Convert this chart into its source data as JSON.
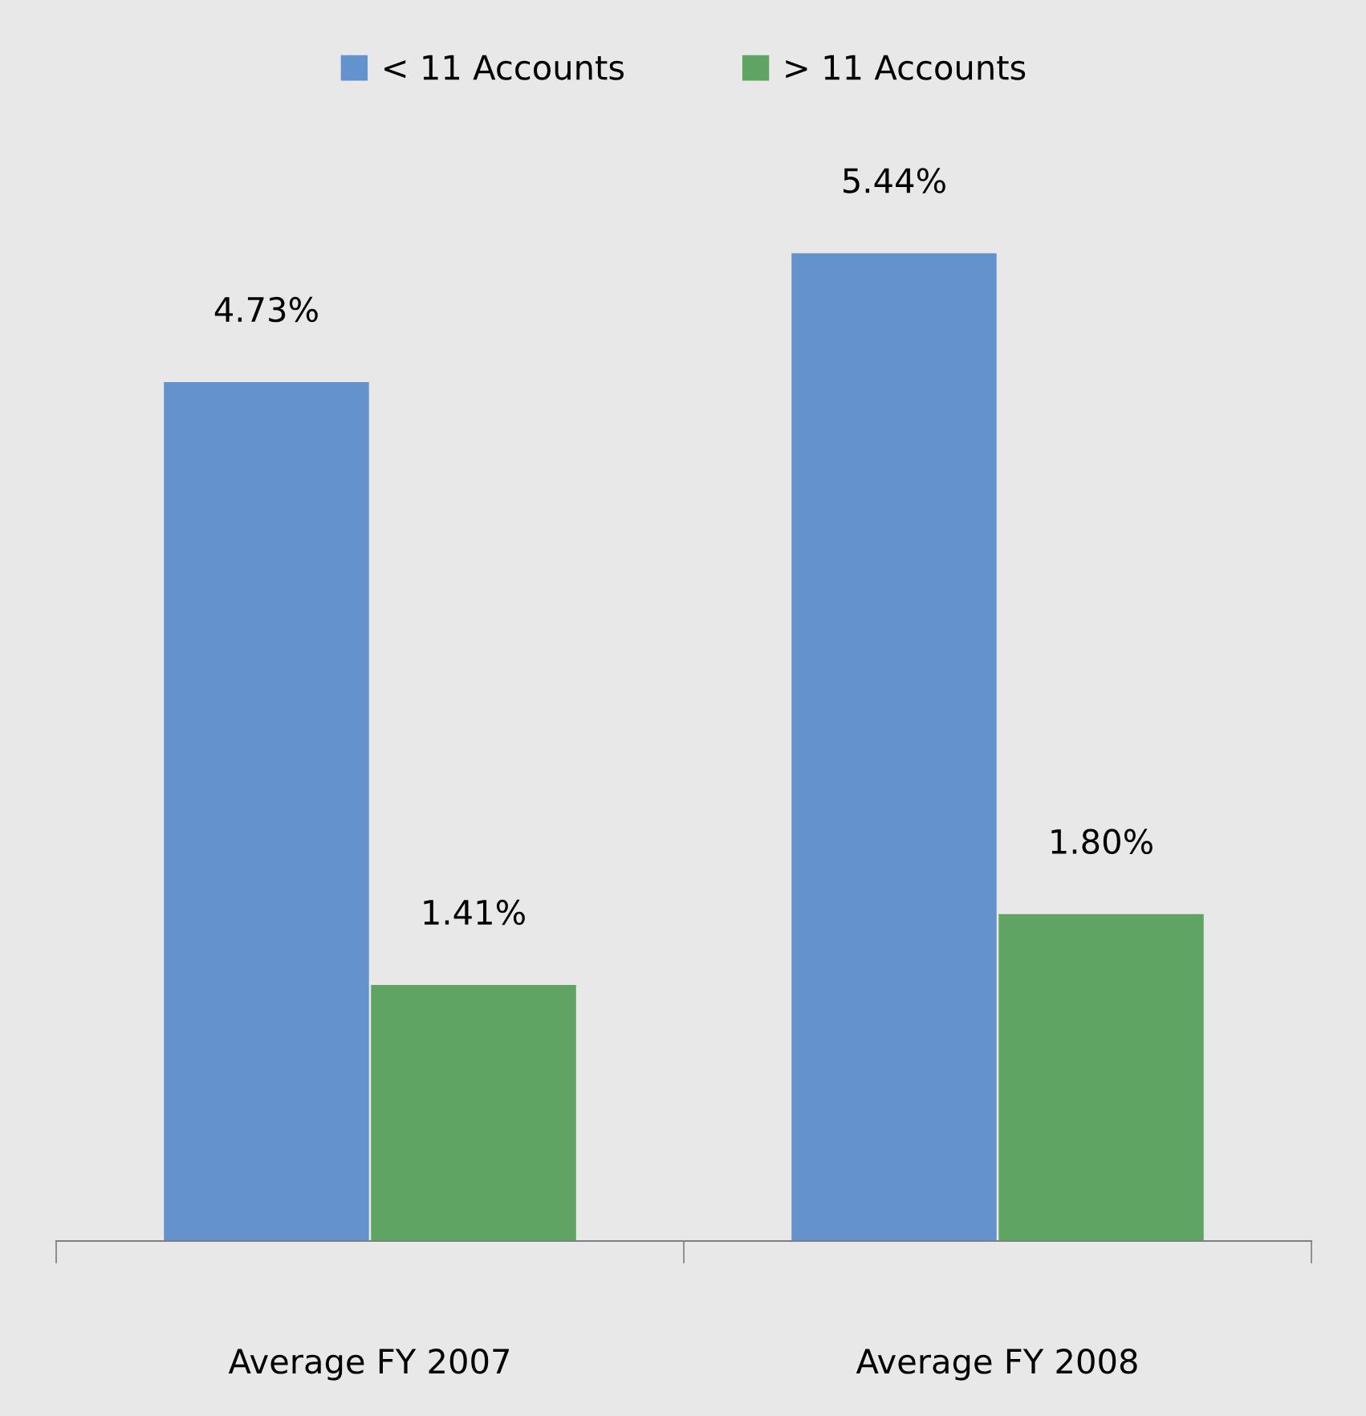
{
  "chart_data": {
    "type": "bar",
    "categories": [
      "Average FY 2007",
      "Average FY 2008"
    ],
    "series": [
      {
        "name": "< 11 Accounts",
        "color": "#6492cd",
        "values": [
          4.73,
          5.44
        ],
        "value_labels": [
          "4.73%",
          "5.44%"
        ]
      },
      {
        "name": "> 11 Accounts",
        "color": "#5fa463",
        "values": [
          1.41,
          1.8
        ],
        "value_labels": [
          "1.41%",
          "1.80%"
        ]
      }
    ],
    "legend": "top"
  }
}
